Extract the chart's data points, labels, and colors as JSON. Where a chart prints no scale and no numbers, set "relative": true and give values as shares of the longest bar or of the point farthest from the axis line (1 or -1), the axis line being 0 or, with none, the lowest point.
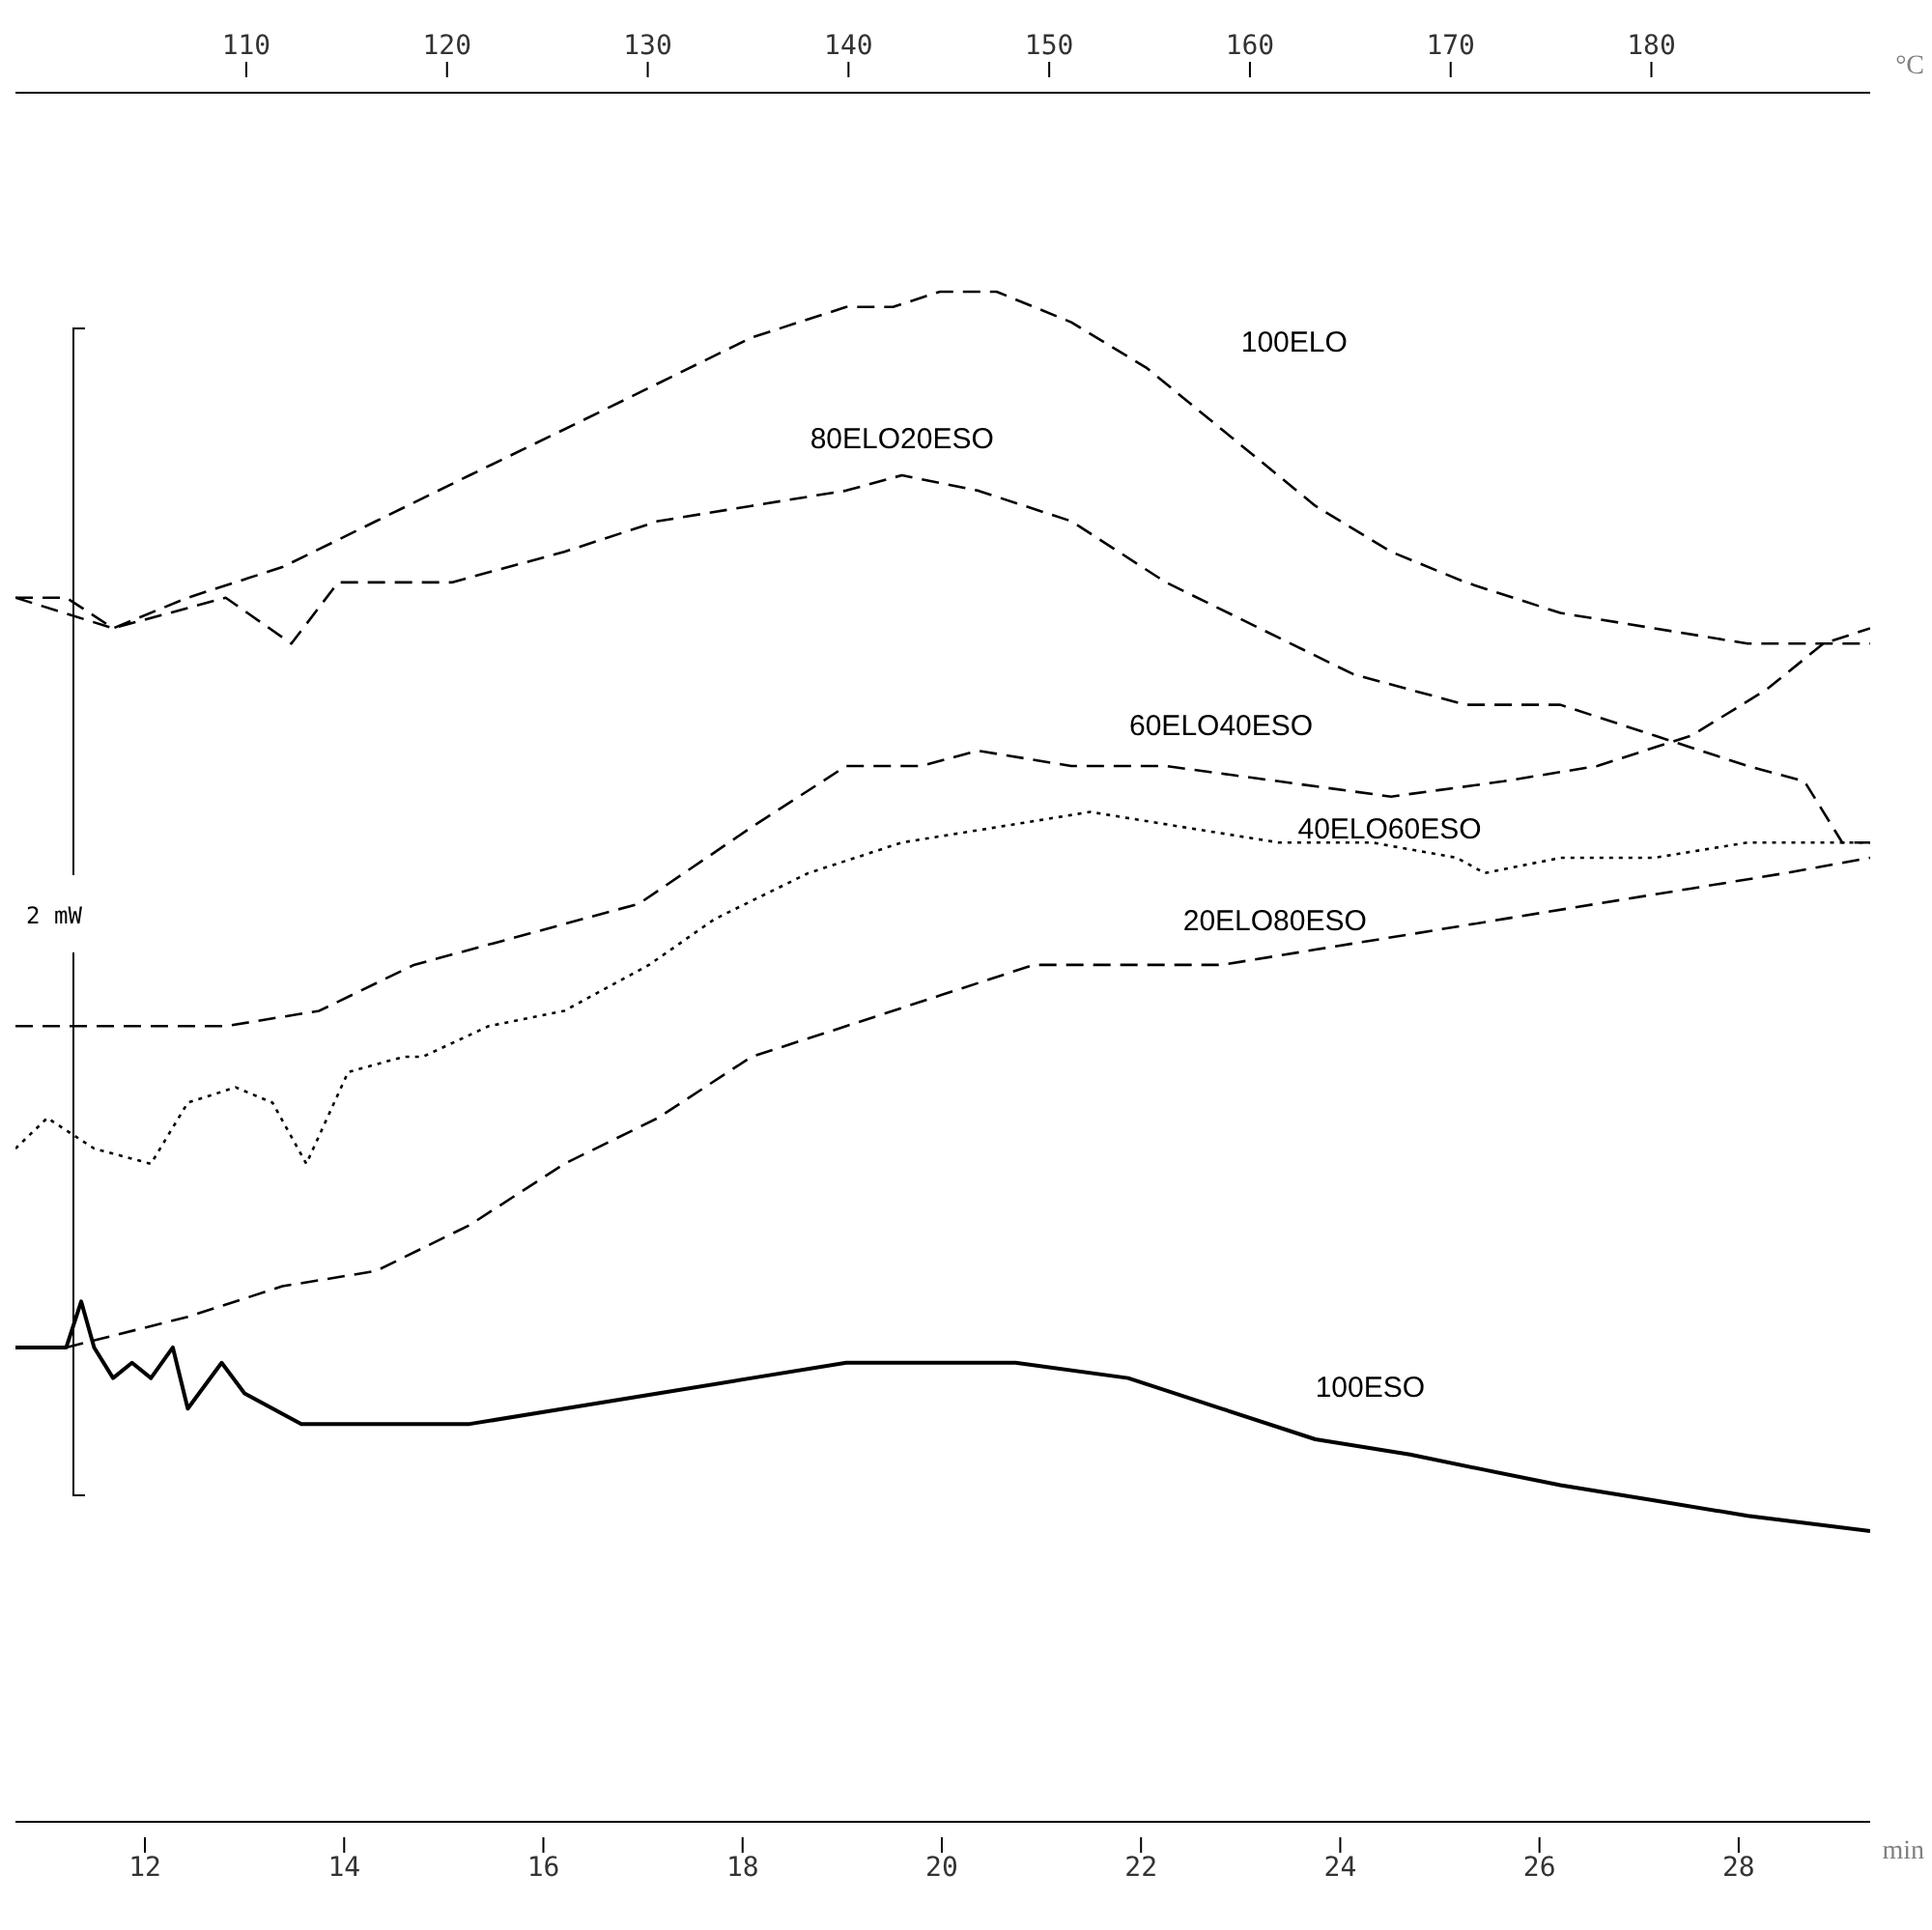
{
  "chart_data": {
    "type": "line",
    "relative": true,
    "xlabel": "min",
    "x2label": "°C",
    "xlim": [
      10.7,
      29.32
    ],
    "xticks": [
      12,
      14,
      16,
      18,
      20,
      22,
      24,
      26,
      28
    ],
    "x2lim": [
      98.5,
      190.9
    ],
    "x2ticks": [
      110,
      120,
      130,
      140,
      150,
      160,
      170,
      180
    ],
    "grid": false,
    "legend": false,
    "annotations": [
      "2 mW"
    ],
    "series": [
      {
        "name": "100ELO",
        "color": "#000000",
        "line_style": "dashed",
        "x": [
          10.7,
          11.21,
          11.68,
          12.43,
          13.38,
          14.32,
          15.26,
          16.21,
          17.15,
          18.09,
          19.04,
          19.51,
          19.98,
          20.55,
          21.3,
          22.06,
          22.81,
          23.75,
          24.51,
          25.26,
          26.21,
          27.15,
          28.09,
          29.32
        ],
        "values": [
          0.8,
          0.8,
          0.78,
          0.8,
          0.82,
          0.85,
          0.88,
          0.91,
          0.94,
          0.97,
          0.99,
          0.99,
          1.0,
          1.0,
          0.98,
          0.95,
          0.91,
          0.86,
          0.83,
          0.81,
          0.79,
          0.78,
          0.77,
          0.77
        ]
      },
      {
        "name": "80ELO20ESO",
        "color": "#000000",
        "line_style": "dashed",
        "x": [
          10.7,
          11.68,
          12.81,
          13.47,
          13.94,
          15.08,
          16.21,
          17.15,
          18.09,
          19.04,
          19.6,
          20.36,
          21.3,
          22.25,
          23.19,
          24.13,
          25.26,
          26.21,
          27.15,
          28.09,
          28.66,
          29.04,
          29.32
        ],
        "values": [
          0.8,
          0.78,
          0.8,
          0.77,
          0.81,
          0.81,
          0.83,
          0.85,
          0.86,
          0.87,
          0.88,
          0.87,
          0.85,
          0.81,
          0.78,
          0.75,
          0.73,
          0.73,
          0.71,
          0.69,
          0.68,
          0.64,
          0.64
        ]
      },
      {
        "name": "60ELO40ESO",
        "color": "#000000",
        "line_style": "dashed",
        "x": [
          10.7,
          11.68,
          12.81,
          13.75,
          14.7,
          15.83,
          16.96,
          18.09,
          19.04,
          19.79,
          20.36,
          21.3,
          22.25,
          23.38,
          24.51,
          25.64,
          26.58,
          27.53,
          28.28,
          28.85,
          29.32
        ],
        "values": [
          0.52,
          0.52,
          0.52,
          0.53,
          0.56,
          0.58,
          0.6,
          0.65,
          0.69,
          0.69,
          0.7,
          0.69,
          0.69,
          0.68,
          0.67,
          0.68,
          0.69,
          0.71,
          0.74,
          0.77,
          0.78
        ]
      },
      {
        "name": "40ELO60ESO",
        "color": "#000000",
        "line_style": "dotted",
        "x": [
          10.7,
          11.02,
          11.49,
          12.06,
          12.43,
          12.91,
          13.28,
          13.62,
          14.04,
          14.6,
          14.79,
          15.45,
          16.21,
          17.06,
          17.72,
          18.66,
          19.6,
          20.55,
          21.49,
          22.43,
          23.38,
          24.32,
          25.17,
          25.45,
          26.21,
          27.15,
          28.09,
          29.32
        ],
        "values": [
          0.44,
          0.46,
          0.44,
          0.43,
          0.47,
          0.48,
          0.47,
          0.43,
          0.49,
          0.5,
          0.5,
          0.52,
          0.53,
          0.56,
          0.59,
          0.62,
          0.64,
          0.65,
          0.66,
          0.65,
          0.64,
          0.64,
          0.63,
          0.62,
          0.63,
          0.63,
          0.64,
          0.64
        ]
      },
      {
        "name": "20ELO80ESO",
        "color": "#000000",
        "line_style": "dashed",
        "x": [
          11.21,
          12.43,
          13.38,
          14.32,
          15.26,
          16.21,
          17.15,
          18.09,
          19.04,
          19.98,
          20.92,
          21.87,
          22.81,
          23.75,
          24.7,
          25.64,
          26.58,
          27.53,
          28.47,
          29.32
        ],
        "values": [
          0.31,
          0.33,
          0.35,
          0.36,
          0.39,
          0.43,
          0.46,
          0.5,
          0.52,
          0.54,
          0.56,
          0.56,
          0.56,
          0.57,
          0.58,
          0.59,
          0.6,
          0.61,
          0.62,
          0.63
        ]
      },
      {
        "name": "100ESO",
        "color": "#000000",
        "line_style": "solid",
        "x": [
          10.7,
          11.21,
          11.36,
          11.49,
          11.68,
          11.87,
          12.06,
          12.28,
          12.43,
          12.77,
          13.0,
          13.57,
          14.6,
          15.26,
          16.21,
          17.15,
          18.09,
          19.04,
          19.98,
          20.74,
          21.87,
          22.81,
          23.75,
          24.7,
          25.45,
          26.21,
          27.15,
          28.09,
          29.32
        ],
        "values": [
          0.31,
          0.31,
          0.34,
          0.31,
          0.29,
          0.3,
          0.29,
          0.31,
          0.27,
          0.3,
          0.28,
          0.26,
          0.26,
          0.26,
          0.27,
          0.28,
          0.29,
          0.3,
          0.3,
          0.3,
          0.29,
          0.27,
          0.25,
          0.24,
          0.23,
          0.22,
          0.21,
          0.2,
          0.19
        ]
      }
    ]
  }
}
